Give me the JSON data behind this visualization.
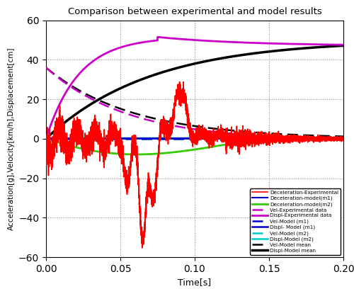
{
  "title": "Comparison between experimental and model results",
  "xlabel": "Time[s]",
  "ylabel": "Acceleration[g],Velocity[km/h],Displacement[cm]",
  "xlim": [
    0,
    0.2
  ],
  "ylim": [
    -60,
    60
  ],
  "xticks": [
    0,
    0.05,
    0.1,
    0.15,
    0.2
  ],
  "yticks": [
    -60,
    -40,
    -20,
    0,
    20,
    40,
    60
  ],
  "colors": {
    "decel_exp": "#ff0000",
    "decel_m1": "#0000cc",
    "decel_m2": "#33cc00",
    "vel_exp": "#cc00cc",
    "displ_exp": "#cc00cc",
    "vel_m1": "#0000cc",
    "displ_m1": "#0000cc",
    "vel_m2": "#00cccc",
    "displ_m2": "#00cccc",
    "vel_mean": "#000000",
    "displ_mean": "#000000"
  },
  "legend_entries": [
    "Deceleration-Experimental",
    "Deceleration-model(m1)",
    "Deceleration-model(m2)",
    "Vel-Experimental data",
    "Displ-Experimental data",
    "Vel-Model (m1)",
    "Displ- Model (m1)",
    "Vel-Model (m2)",
    "Displ-Model (m2)",
    "Vel-Model mean",
    "Displ-Model mean"
  ],
  "figsize": [
    5.0,
    4.08
  ],
  "dpi": 100
}
